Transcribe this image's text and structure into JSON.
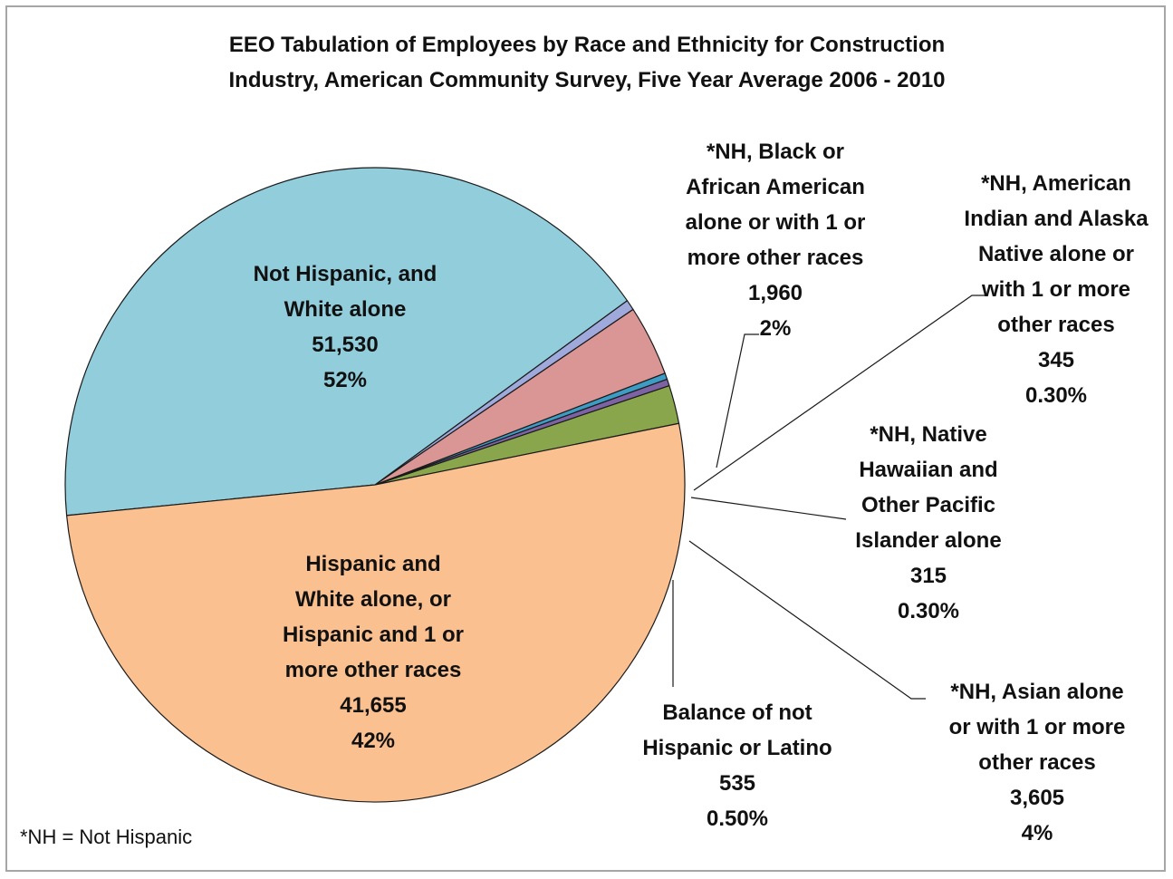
{
  "chart_data": {
    "type": "pie",
    "title": "EEO Tabulation of Employees by Race and Ethnicity for Construction Industry, American Community Survey, Five Year Average 2006 - 2010",
    "title_lines": [
      "EEO Tabulation of Employees by Race and Ethnicity for Construction",
      "Industry, American Community Survey, Five Year Average 2006 - 2010"
    ],
    "footnote": "*NH = Not Hispanic",
    "slices": [
      {
        "label": "*NH, Black or African American alone or with 1 or more other races",
        "label_lines": [
          "*NH, Black or",
          "African American",
          "alone or with 1 or",
          "more other races"
        ],
        "value": 1960,
        "value_label": "1,960",
        "percent_label": "2%",
        "color": "#8aa64c"
      },
      {
        "label": "*NH, American Indian and Alaska Native alone or with 1 or more other races",
        "label_lines": [
          "*NH, American",
          "Indian and Alaska",
          "Native alone or",
          "with 1 or more",
          "other races"
        ],
        "value": 345,
        "value_label": "345",
        "percent_label": "0.30%",
        "color": "#7d63a3"
      },
      {
        "label": "*NH, Native Hawaiian and Other Pacific Islander alone",
        "label_lines": [
          "*NH, Native",
          "Hawaiian and",
          "Other Pacific",
          "Islander alone"
        ],
        "value": 315,
        "value_label": "315",
        "percent_label": "0.30%",
        "color": "#3d9cc4"
      },
      {
        "label": "*NH, Asian alone or with 1 or more other races",
        "label_lines": [
          "*NH, Asian alone",
          "or with 1 or more",
          "other races"
        ],
        "value": 3605,
        "value_label": "3,605",
        "percent_label": "4%",
        "color": "#d99694"
      },
      {
        "label": "Balance of not Hispanic or Latino",
        "label_lines": [
          "Balance of not",
          "Hispanic or Latino"
        ],
        "value": 535,
        "value_label": "535",
        "percent_label": "0.50%",
        "color": "#9fa9db"
      },
      {
        "label": "Hispanic and White alone, or Hispanic and 1 or more other races",
        "label_lines": [
          "Hispanic and",
          "White alone, or",
          "Hispanic and 1 or",
          "more other races"
        ],
        "value": 41655,
        "value_label": "41,655",
        "percent_label": "42%",
        "color": "#92cddc"
      },
      {
        "label": "Not Hispanic, and White alone",
        "label_lines": [
          "Not Hispanic, and",
          "White alone"
        ],
        "value": 51530,
        "value_label": "51,530",
        "percent_label": "52%",
        "color": "#fac090"
      }
    ]
  }
}
